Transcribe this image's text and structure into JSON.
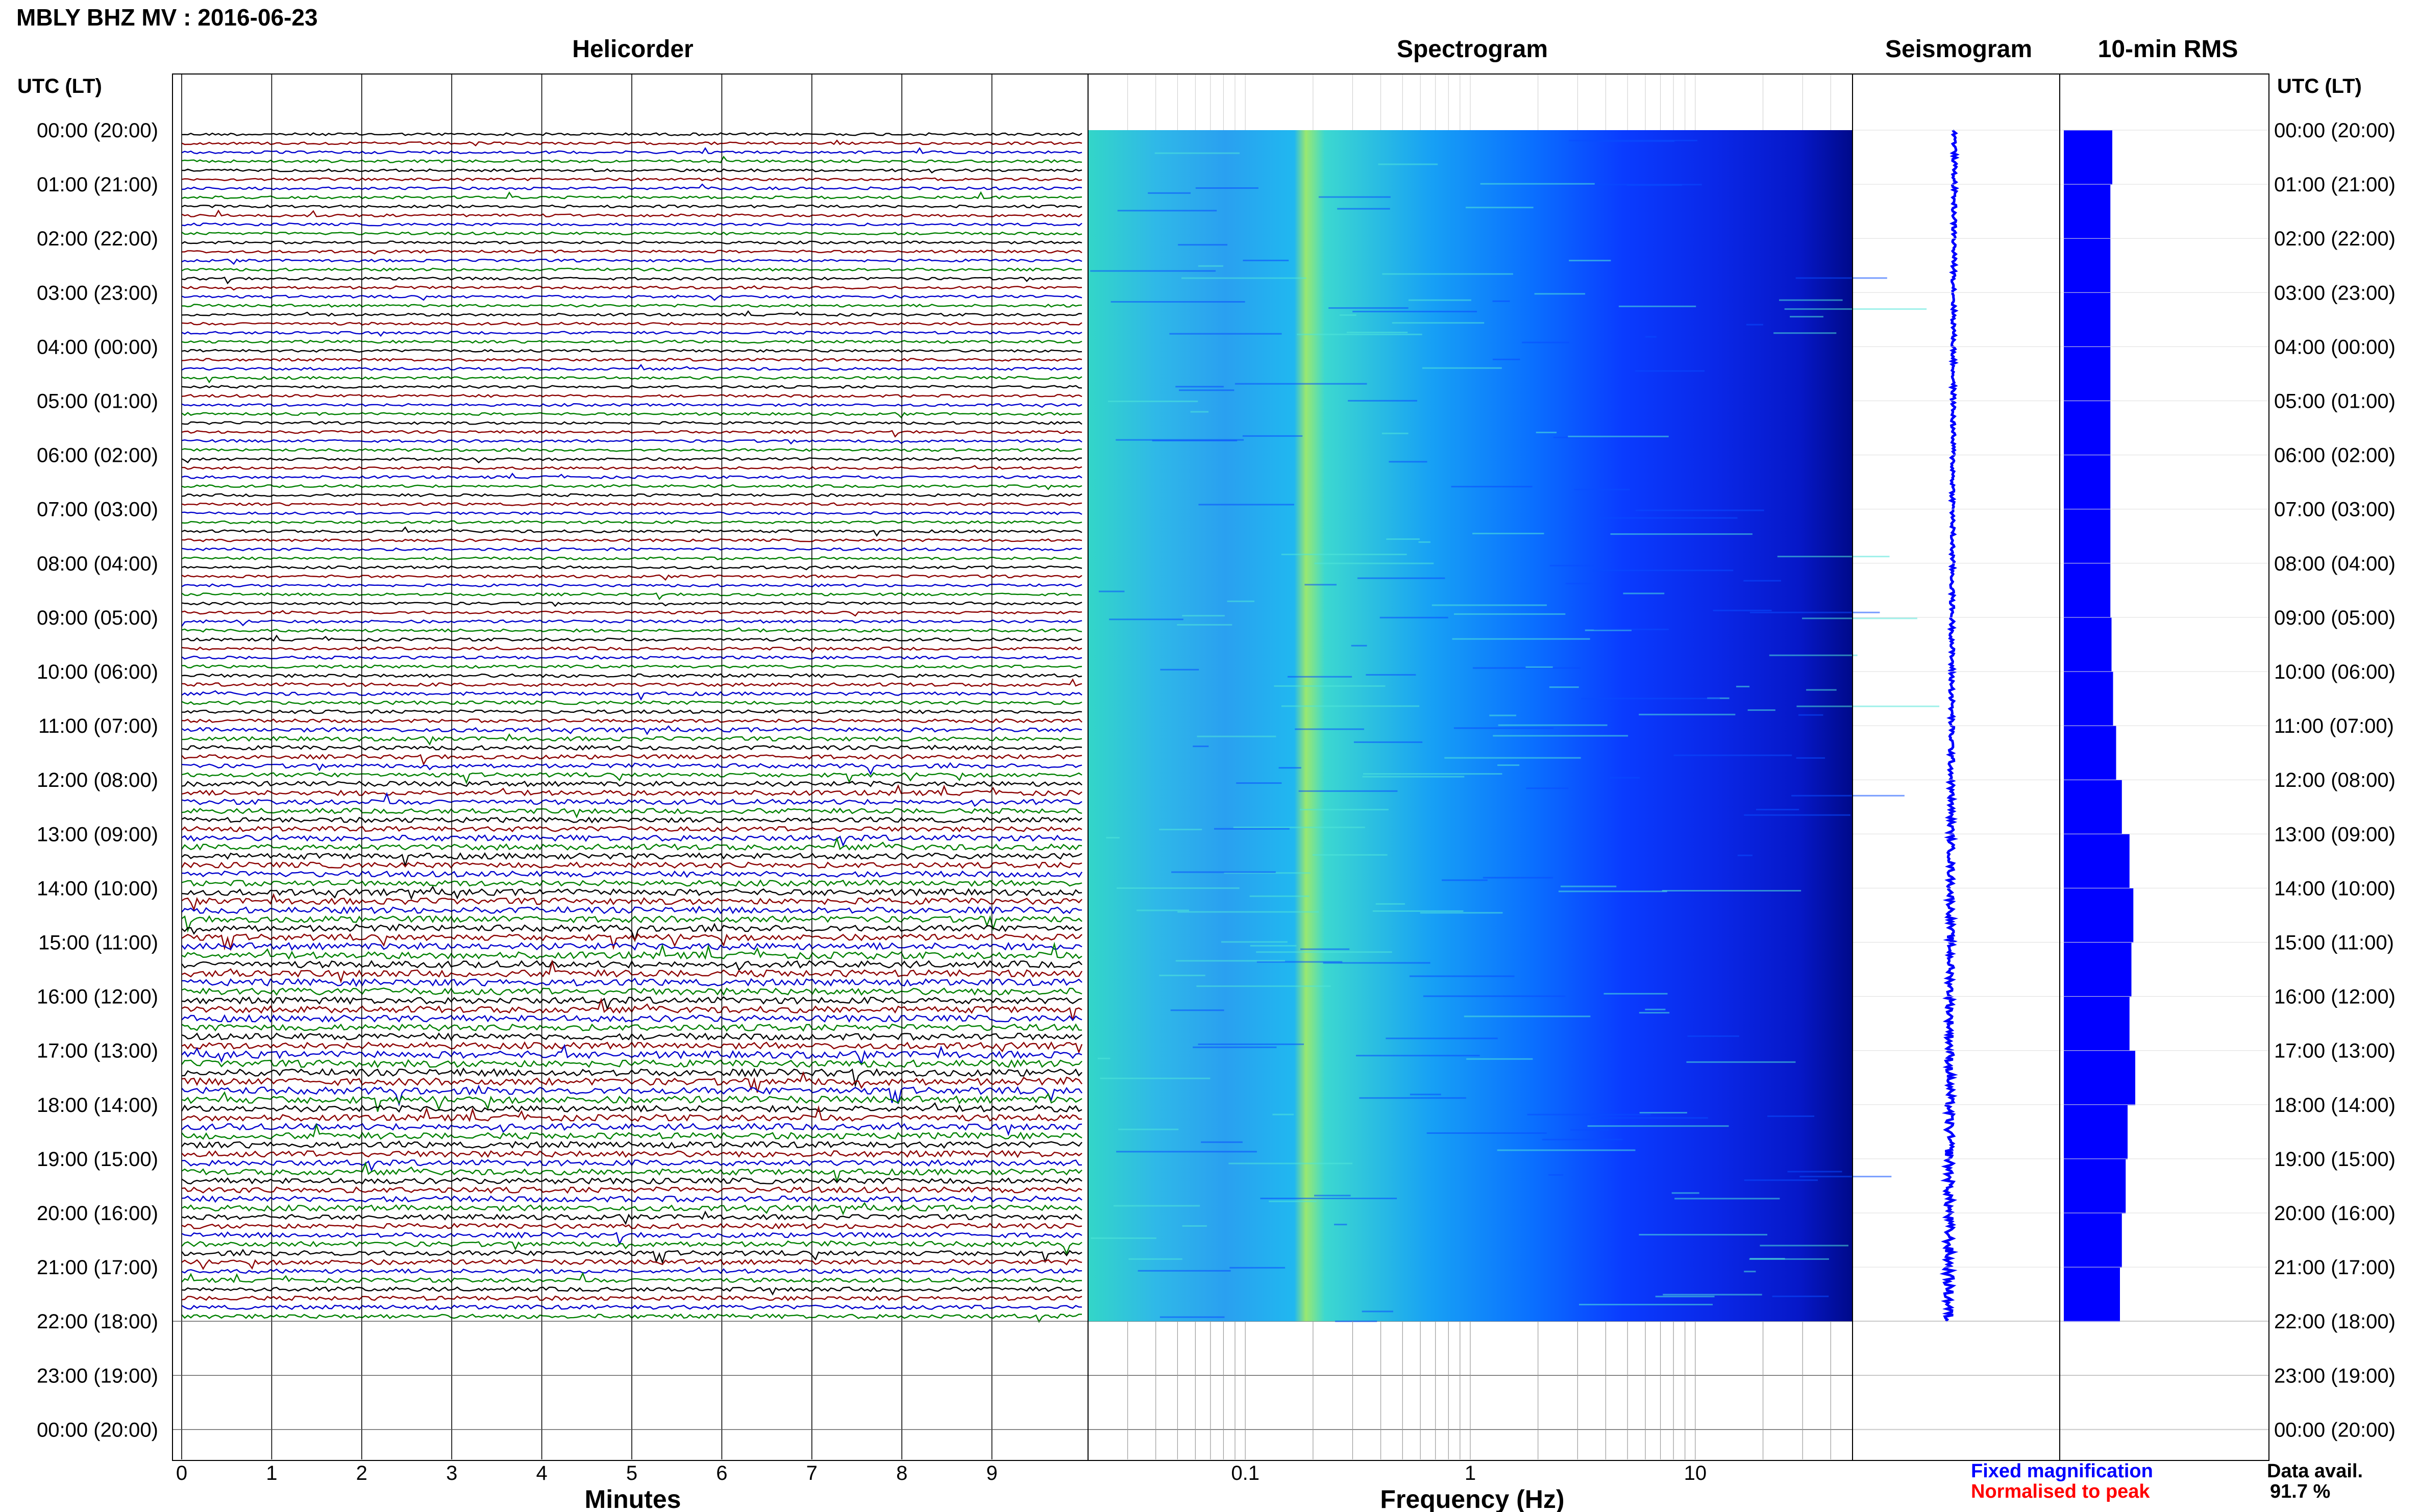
{
  "header": {
    "title": "MBLY BHZ MV : 2016-06-23",
    "left_axis_label": "UTC (LT)",
    "right_axis_label": "UTC (LT)"
  },
  "legend": {
    "fixed": "Fixed magnification",
    "normalised": "Normalised to peak",
    "fixed_color": "#0000ff",
    "normalised_color": "#ff0000",
    "data_avail_label": "Data avail.",
    "data_avail_value": "91.7 %"
  },
  "chart_data": [
    {
      "type": "line",
      "title": "Helicorder",
      "xlabel": "Minutes",
      "ylabel": "UTC (LT)",
      "xlim": [
        0,
        10
      ],
      "x_ticks": [
        "0",
        "1",
        "2",
        "3",
        "4",
        "5",
        "6",
        "7",
        "8",
        "9"
      ],
      "y_tick_labels": [
        "00:00 (20:00)",
        "01:00 (21:00)",
        "02:00 (22:00)",
        "03:00 (23:00)",
        "04:00 (00:00)",
        "05:00 (01:00)",
        "06:00 (02:00)",
        "07:00 (03:00)",
        "08:00 (04:00)",
        "09:00 (05:00)",
        "10:00 (06:00)",
        "11:00 (07:00)",
        "12:00 (08:00)",
        "13:00 (09:00)",
        "14:00 (10:00)",
        "15:00 (11:00)",
        "16:00 (12:00)",
        "17:00 (13:00)",
        "18:00 (14:00)",
        "19:00 (15:00)",
        "20:00 (16:00)",
        "21:00 (17:00)",
        "22:00 (18:00)",
        "23:00 (19:00)",
        "00:00 (20:00)"
      ],
      "trace_colors": [
        "#000000",
        "#8b0000",
        "#0000cd",
        "#008000"
      ],
      "traces_per_hour": 6,
      "data_end_hour": 22,
      "noise_level_by_hour": [
        1.0,
        1.0,
        1.0,
        1.0,
        1.0,
        1.0,
        1.0,
        1.0,
        1.0,
        1.1,
        1.3,
        1.6,
        1.9,
        2.2,
        2.4,
        2.6,
        2.5,
        2.7,
        2.4,
        2.2,
        1.9,
        1.6
      ]
    },
    {
      "type": "heatmap",
      "title": "Spectrogram",
      "xlabel": "Frequency (Hz)",
      "x_scale": "log",
      "xlim": [
        0.02,
        50
      ],
      "x_ticks": [
        0.1,
        1,
        10
      ],
      "x_tick_labels": [
        "0.1",
        "1",
        "10"
      ],
      "colormap": [
        "#00008b",
        "#0000ff",
        "#0080ff",
        "#00c8ff",
        "#40e0d0",
        "#9aff60"
      ],
      "data_end_hour": 22
    },
    {
      "type": "line",
      "title": "Seismogram",
      "data_end_hour": 22,
      "series_color": "#0000ff"
    },
    {
      "type": "bar",
      "title": "10-min RMS",
      "orientation": "horizontal",
      "bar_color": "#0000ff",
      "data_end_hour": 22,
      "hours": [
        0,
        1,
        2,
        3,
        4,
        5,
        6,
        7,
        8,
        9,
        10,
        11,
        12,
        13,
        14,
        15,
        16,
        17,
        18,
        19,
        20,
        21,
        22
      ],
      "rms_relative": [
        1.0,
        0.95,
        0.95,
        0.95,
        0.95,
        0.95,
        0.95,
        0.95,
        0.95,
        0.98,
        1.02,
        1.1,
        1.25,
        1.45,
        1.55,
        1.5,
        1.45,
        1.6,
        1.4,
        1.35,
        1.25,
        1.2,
        1.15
      ]
    }
  ]
}
